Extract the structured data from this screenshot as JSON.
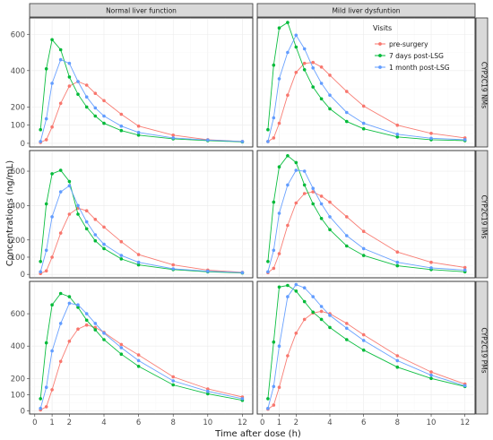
{
  "chart_data": {
    "type": "line",
    "xlabel": "Time after dose (h)",
    "ylabel": "Concentrations (ng/mL)",
    "x": [
      0.33,
      0.67,
      1,
      1.5,
      2,
      2.5,
      3,
      3.5,
      4,
      5,
      6,
      8,
      10,
      12
    ],
    "xticks": [
      0,
      1,
      2,
      4,
      6,
      8,
      10,
      12
    ],
    "xlim": [
      -0.3,
      12.6
    ],
    "columns": [
      "Normal liver function",
      "Mild liver dysfuntion"
    ],
    "rows": [
      "CYP2C19 NMs",
      "CYP2C19 IMs",
      "CYP2C19 PMs"
    ],
    "legend_title": "Visits",
    "legend_position": "top-right",
    "grid": true,
    "series_names": [
      "pre-surgery",
      "7 days post-LSG",
      "1 month post-LSG"
    ],
    "colors": {
      "pre-surgery": "#f8766d",
      "7 days post-LSG": "#00ba38",
      "1 month post-LSG": "#619cff"
    },
    "panels": [
      {
        "row": "CYP2C19 NMs",
        "col": "Normal liver function",
        "ylim": [
          -20,
          690
        ],
        "yticks": [
          0,
          100,
          200,
          400,
          600
        ],
        "series": [
          {
            "name": "pre-surgery",
            "values": [
              5,
              20,
              90,
              220,
              315,
              340,
              320,
              275,
              235,
              160,
              95,
              45,
              20,
              10
            ]
          },
          {
            "name": "7 days post-LSG",
            "values": [
              75,
              410,
              570,
              515,
              365,
              270,
              200,
              150,
              110,
              70,
              45,
              25,
              15,
              8
            ]
          },
          {
            "name": "1 month post-LSG",
            "values": [
              10,
              135,
              330,
              460,
              440,
              340,
              255,
              195,
              150,
              95,
              60,
              30,
              18,
              10
            ]
          }
        ]
      },
      {
        "row": "CYP2C19 NMs",
        "col": "Mild liver dysfuntion",
        "ylim": [
          -20,
          690
        ],
        "yticks": [
          0,
          100,
          200,
          400,
          600
        ],
        "series": [
          {
            "name": "pre-surgery",
            "values": [
              10,
              30,
              110,
              265,
              390,
              440,
              445,
              420,
              375,
              285,
              205,
              100,
              55,
              30
            ]
          },
          {
            "name": "7 days post-LSG",
            "values": [
              75,
              430,
              635,
              665,
              530,
              405,
              310,
              245,
              190,
              120,
              80,
              35,
              20,
              15
            ]
          },
          {
            "name": "1 month post-LSG",
            "values": [
              10,
              140,
              355,
              500,
              595,
              520,
              415,
              330,
              265,
              170,
              110,
              50,
              28,
              20
            ]
          }
        ]
      },
      {
        "row": "CYP2C19 IMs",
        "col": "Normal liver function",
        "ylim": [
          -20,
          720
        ],
        "yticks": [
          0,
          100,
          200,
          400,
          600
        ],
        "series": [
          {
            "name": "pre-surgery",
            "values": [
              5,
              20,
              100,
              240,
              350,
              385,
              370,
              320,
              275,
              190,
              115,
              55,
              25,
              12
            ]
          },
          {
            "name": "7 days post-LSG",
            "values": [
              75,
              410,
              585,
              605,
              540,
              350,
              265,
              195,
              150,
              90,
              55,
              28,
              15,
              8
            ]
          },
          {
            "name": "1 month post-LSG",
            "values": [
              15,
              140,
              335,
              480,
              515,
              400,
              305,
              230,
              175,
              110,
              70,
              32,
              18,
              10
            ]
          }
        ]
      },
      {
        "row": "CYP2C19 IMs",
        "col": "Mild liver dysfuntion",
        "ylim": [
          -20,
          720
        ],
        "yticks": [
          0,
          100,
          200,
          400,
          600
        ],
        "series": [
          {
            "name": "pre-surgery",
            "values": [
              10,
              35,
              120,
              285,
              415,
              470,
              480,
              455,
              420,
              335,
              250,
              130,
              70,
              40
            ]
          },
          {
            "name": "7 days post-LSG",
            "values": [
              75,
              420,
              625,
              690,
              650,
              520,
              410,
              325,
              260,
              165,
              110,
              50,
              28,
              15
            ]
          },
          {
            "name": "1 month post-LSG",
            "values": [
              15,
              140,
              355,
              520,
              605,
              600,
              500,
              410,
              335,
              225,
              150,
              70,
              38,
              25
            ]
          }
        ]
      },
      {
        "row": "CYP2C19 PMs",
        "col": "Normal liver function",
        "ylim": [
          -20,
          800
        ],
        "yticks": [
          0,
          100,
          200,
          400,
          600
        ],
        "series": [
          {
            "name": "pre-surgery",
            "values": [
              5,
              25,
              130,
              305,
              430,
              505,
              530,
              515,
              485,
              410,
              345,
              210,
              135,
              85
            ]
          },
          {
            "name": "7 days post-LSG",
            "values": [
              75,
              420,
              655,
              725,
              705,
              640,
              560,
              500,
              440,
              350,
              275,
              160,
              105,
              65
            ]
          },
          {
            "name": "1 month post-LSG",
            "values": [
              15,
              145,
              370,
              540,
              665,
              655,
              600,
              540,
              480,
              390,
              310,
              185,
              120,
              75
            ]
          }
        ]
      },
      {
        "row": "CYP2C19 PMs",
        "col": "Mild liver dysfuntion",
        "ylim": [
          -20,
          800
        ],
        "yticks": [
          0,
          100,
          200,
          400,
          600
        ],
        "series": [
          {
            "name": "pre-surgery",
            "values": [
              10,
              35,
              145,
              340,
              480,
              565,
              605,
              615,
              600,
              540,
              470,
              340,
              240,
              165
            ]
          },
          {
            "name": "7 days post-LSG",
            "values": [
              75,
              425,
              765,
              775,
              740,
              675,
              610,
              565,
              515,
              440,
              375,
              270,
              200,
              150
            ]
          },
          {
            "name": "1 month post-LSG",
            "values": [
              15,
              150,
              400,
              705,
              780,
              760,
              705,
              645,
              590,
              510,
              435,
              310,
              220,
              155
            ]
          }
        ]
      }
    ]
  }
}
